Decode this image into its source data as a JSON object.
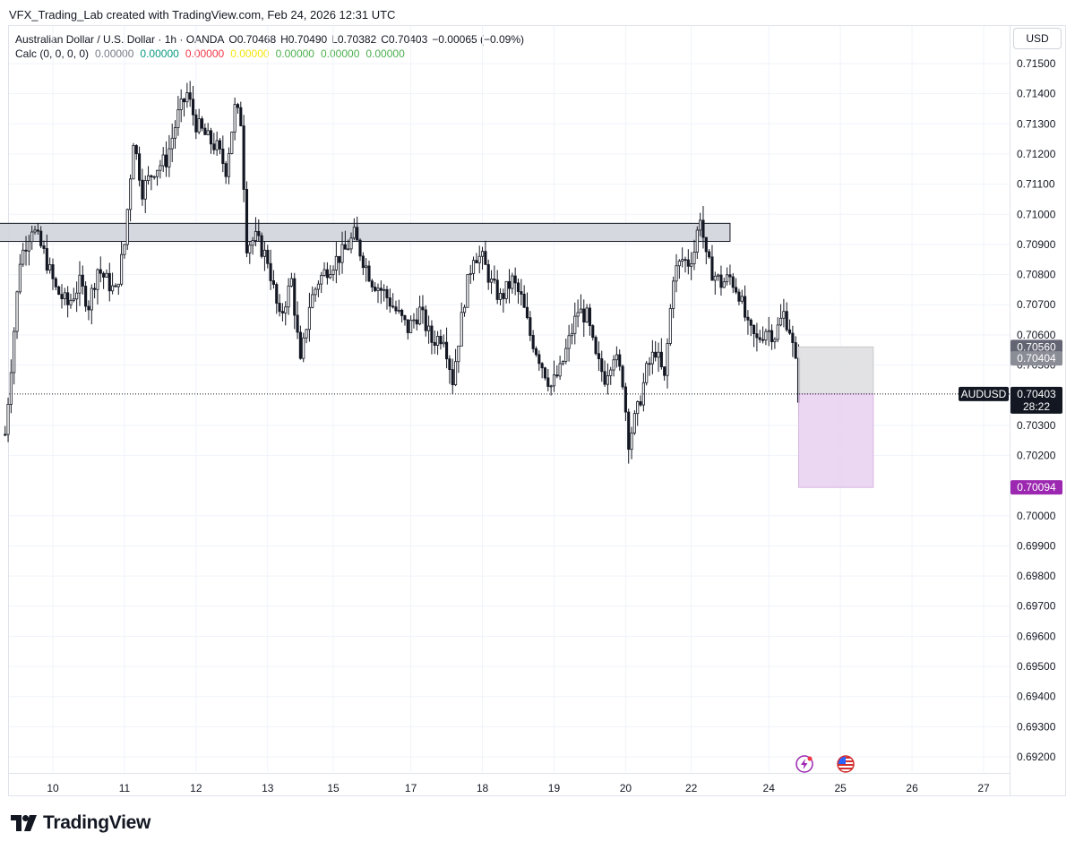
{
  "attribution": "VFX_Trading_Lab created with TradingView.com, Feb 24, 2026 12:31 UTC",
  "currency_button": "USD",
  "legend": {
    "symbol_line": "Australian Dollar / U.S. Dollar · 1h · OANDA",
    "open": "O0.70468",
    "high": "H0.70490",
    "low": "L0.70382",
    "close": "C0.70403",
    "change": "−0.00065 (−0.09%)",
    "calc_label": "Calc (0, 0, 0, 0)",
    "calc_values": [
      {
        "text": "0.00000",
        "color": "#787b86"
      },
      {
        "text": "0.00000",
        "color": "#089981"
      },
      {
        "text": "0.00000",
        "color": "#f23645"
      },
      {
        "text": "0.00000",
        "color": "#f5e50a"
      },
      {
        "text": "0.00000",
        "color": "#4caf50"
      },
      {
        "text": "0.00000",
        "color": "#4caf50"
      },
      {
        "text": "0.00000",
        "color": "#4caf50"
      }
    ]
  },
  "branding": "TradingView",
  "event_icons": [
    "lightning-event-icon",
    "us-flag-event-icon"
  ],
  "chart_data": {
    "type": "candlestick",
    "symbol": "AUDUSD",
    "interval": "1h",
    "ylim": [
      0.6916,
      0.7155
    ],
    "yticks": [
      "0.71500",
      "0.71400",
      "0.71300",
      "0.71200",
      "0.71100",
      "0.71000",
      "0.70900",
      "0.70800",
      "0.70700",
      "0.70600",
      "0.70500",
      "0.70300",
      "0.70200",
      "0.70000",
      "0.69900",
      "0.69800",
      "0.69700",
      "0.69600",
      "0.69500",
      "0.69400",
      "0.69300",
      "0.69200"
    ],
    "xticks": [
      {
        "label": "10",
        "t": 16
      },
      {
        "label": "11",
        "t": 40
      },
      {
        "label": "12",
        "t": 64
      },
      {
        "label": "13",
        "t": 88
      },
      {
        "label": "15",
        "t": 110
      },
      {
        "label": "17",
        "t": 136
      },
      {
        "label": "18",
        "t": 160
      },
      {
        "label": "19",
        "t": 184
      },
      {
        "label": "20",
        "t": 208
      },
      {
        "label": "22",
        "t": 230
      },
      {
        "label": "24",
        "t": 256
      },
      {
        "label": "25",
        "t": 280
      },
      {
        "label": "26",
        "t": 304
      },
      {
        "label": "27",
        "t": 328
      }
    ],
    "price_path": [
      [
        0,
        0.7027
      ],
      [
        2,
        0.705
      ],
      [
        5,
        0.7085
      ],
      [
        9,
        0.7096
      ],
      [
        13,
        0.7087
      ],
      [
        17,
        0.7075
      ],
      [
        21,
        0.707
      ],
      [
        25,
        0.7077
      ],
      [
        28,
        0.707
      ],
      [
        31,
        0.7082
      ],
      [
        34,
        0.7078
      ],
      [
        37,
        0.7074
      ],
      [
        40,
        0.709
      ],
      [
        43,
        0.7125
      ],
      [
        46,
        0.7108
      ],
      [
        50,
        0.7115
      ],
      [
        54,
        0.7118
      ],
      [
        58,
        0.7133
      ],
      [
        61,
        0.714
      ],
      [
        64,
        0.713
      ],
      [
        68,
        0.7125
      ],
      [
        71,
        0.7122
      ],
      [
        74,
        0.7115
      ],
      [
        77,
        0.7135
      ],
      [
        79,
        0.7131
      ],
      [
        81,
        0.709
      ],
      [
        84,
        0.7092
      ],
      [
        88,
        0.7085
      ],
      [
        92,
        0.7065
      ],
      [
        96,
        0.7078
      ],
      [
        99,
        0.705
      ],
      [
        102,
        0.707
      ],
      [
        105,
        0.7078
      ],
      [
        108,
        0.7082
      ],
      [
        111,
        0.7085
      ],
      [
        114,
        0.7088
      ],
      [
        117,
        0.7093
      ],
      [
        120,
        0.7085
      ],
      [
        123,
        0.7078
      ],
      [
        127,
        0.7074
      ],
      [
        131,
        0.7068
      ],
      [
        135,
        0.7062
      ],
      [
        139,
        0.7068
      ],
      [
        143,
        0.7058
      ],
      [
        147,
        0.706
      ],
      [
        150,
        0.7045
      ],
      [
        154,
        0.7072
      ],
      [
        157,
        0.7087
      ],
      [
        160,
        0.7085
      ],
      [
        163,
        0.7077
      ],
      [
        166,
        0.7072
      ],
      [
        170,
        0.7078
      ],
      [
        173,
        0.7072
      ],
      [
        176,
        0.706
      ],
      [
        180,
        0.705
      ],
      [
        183,
        0.7043
      ],
      [
        186,
        0.7048
      ],
      [
        189,
        0.7058
      ],
      [
        192,
        0.7068
      ],
      [
        195,
        0.7066
      ],
      [
        198,
        0.7052
      ],
      [
        201,
        0.7046
      ],
      [
        204,
        0.7054
      ],
      [
        207,
        0.7045
      ],
      [
        209,
        0.7025
      ],
      [
        212,
        0.7035
      ],
      [
        215,
        0.7048
      ],
      [
        218,
        0.7055
      ],
      [
        221,
        0.7045
      ],
      [
        224,
        0.708
      ],
      [
        227,
        0.7085
      ],
      [
        229,
        0.7084
      ],
      [
        231,
        0.7088
      ],
      [
        233,
        0.71
      ],
      [
        235,
        0.7085
      ],
      [
        237,
        0.7081
      ],
      [
        240,
        0.7077
      ],
      [
        243,
        0.7079
      ],
      [
        246,
        0.7074
      ],
      [
        249,
        0.7062
      ],
      [
        252,
        0.7058
      ],
      [
        255,
        0.7062
      ],
      [
        258,
        0.706
      ],
      [
        261,
        0.7067
      ],
      [
        263,
        0.7062
      ],
      [
        265,
        0.705
      ],
      [
        266,
        0.704
      ]
    ],
    "resistance_zone": {
      "from": 0.7091,
      "to": 0.7097,
      "t_start": -2,
      "t_end": 243
    },
    "position": {
      "t_start": 266,
      "t_end": 291,
      "entry": 0.70404,
      "target_gray": 0.7056,
      "stop_purple": 0.70094,
      "gray_color": "#dddddf",
      "purple_color": "#e8d0ef"
    },
    "price_labels": [
      {
        "text": "0.70560",
        "bg": "#636573"
      },
      {
        "text": "0.70404",
        "bg": "#8a8c96"
      },
      {
        "text": "0.70094",
        "bg": "#9c27b0"
      }
    ],
    "last_price": {
      "text": "0.70403",
      "countdown": "28:22",
      "symbol_tag": "AUDUSD"
    }
  }
}
